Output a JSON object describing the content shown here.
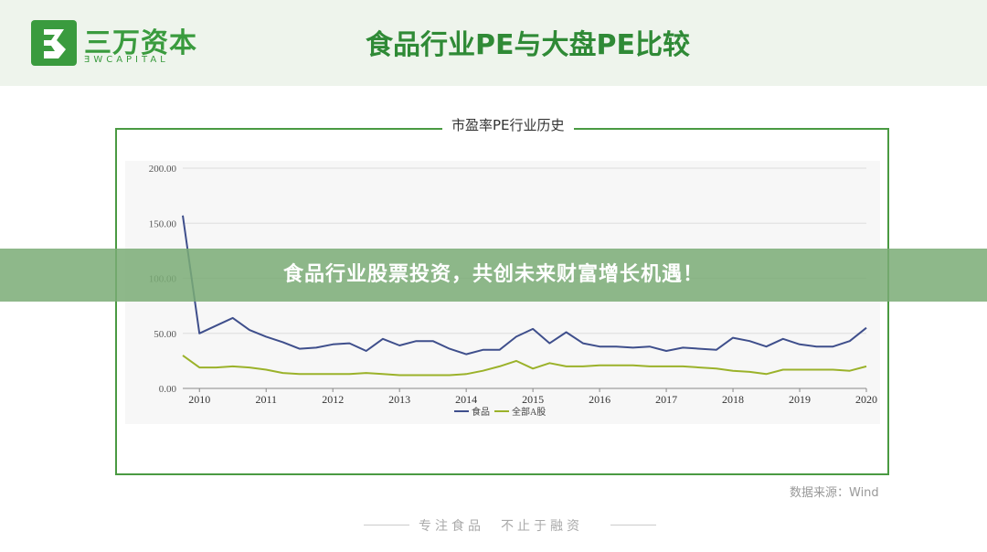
{
  "header": {
    "logo_cn": "三万资本",
    "logo_en": "ƎWCAPITAL",
    "title": "食品行业PE与大盘PE比较"
  },
  "banner": {
    "text": "食品行业股票投资，共创未来财富增长机遇！"
  },
  "footer": {
    "source": "数据来源：Wind",
    "slogan": "专注食品　不止于融资"
  },
  "colors": {
    "food": "#3f4f8c",
    "all_a": "#9bb22a",
    "brand": "#3a9b3e"
  },
  "chart_data": {
    "type": "line",
    "title": "市盈率PE行业历史",
    "ylabel": "",
    "xlabel": "",
    "ylim": [
      0,
      200
    ],
    "yticks": [
      "0.00",
      "50.00",
      "100.00",
      "150.00",
      "200.00"
    ],
    "xlim": [
      2009.75,
      2020
    ],
    "xticks": [
      "2010",
      "2011",
      "2012",
      "2013",
      "2014",
      "2015",
      "2016",
      "2017",
      "2018",
      "2019",
      "2020"
    ],
    "legend_position": "bottom",
    "grid": true,
    "series": [
      {
        "name": "食品",
        "x": [
          2009.75,
          2010.0,
          2010.25,
          2010.5,
          2010.75,
          2011.0,
          2011.25,
          2011.5,
          2011.75,
          2012.0,
          2012.25,
          2012.5,
          2012.75,
          2013.0,
          2013.25,
          2013.5,
          2013.75,
          2014.0,
          2014.25,
          2014.5,
          2014.75,
          2015.0,
          2015.25,
          2015.5,
          2015.75,
          2016.0,
          2016.25,
          2016.5,
          2016.75,
          2017.0,
          2017.25,
          2017.5,
          2017.75,
          2018.0,
          2018.25,
          2018.5,
          2018.75,
          2019.0,
          2019.25,
          2019.5,
          2019.75,
          2020.0
        ],
        "values": [
          157,
          50,
          57,
          64,
          53,
          47,
          42,
          36,
          37,
          40,
          41,
          34,
          45,
          39,
          43,
          43,
          36,
          31,
          35,
          35,
          47,
          54,
          41,
          51,
          41,
          38,
          38,
          37,
          38,
          34,
          37,
          36,
          35,
          46,
          43,
          38,
          45,
          40,
          38,
          38,
          43,
          55
        ]
      },
      {
        "name": "全部A股",
        "x": [
          2009.75,
          2010.0,
          2010.25,
          2010.5,
          2010.75,
          2011.0,
          2011.25,
          2011.5,
          2011.75,
          2012.0,
          2012.25,
          2012.5,
          2012.75,
          2013.0,
          2013.25,
          2013.5,
          2013.75,
          2014.0,
          2014.25,
          2014.5,
          2014.75,
          2015.0,
          2015.25,
          2015.5,
          2015.75,
          2016.0,
          2016.25,
          2016.5,
          2016.75,
          2017.0,
          2017.25,
          2017.5,
          2017.75,
          2018.0,
          2018.25,
          2018.5,
          2018.75,
          2019.0,
          2019.25,
          2019.5,
          2019.75,
          2020.0
        ],
        "values": [
          30,
          19,
          19,
          20,
          19,
          17,
          14,
          13,
          13,
          13,
          13,
          14,
          13,
          12,
          12,
          12,
          12,
          13,
          16,
          20,
          25,
          18,
          23,
          20,
          20,
          21,
          21,
          21,
          20,
          20,
          20,
          19,
          18,
          16,
          15,
          13,
          17,
          17,
          17,
          17,
          16,
          20
        ]
      }
    ]
  }
}
